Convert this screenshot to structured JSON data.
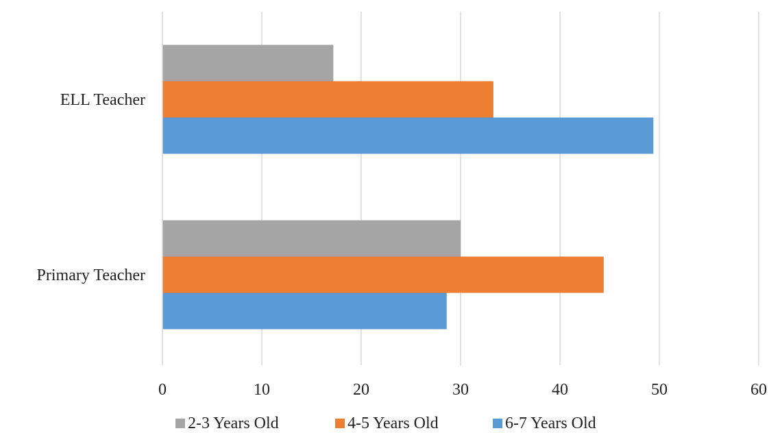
{
  "chart_data": {
    "type": "bar",
    "orientation": "horizontal",
    "title": "",
    "xlabel": "",
    "ylabel": "",
    "categories": [
      "ELL Teacher",
      "Primary Teacher"
    ],
    "series": [
      {
        "name": "2-3 Years Old",
        "values": [
          17.2,
          30.0
        ],
        "color": "#a5a5a5"
      },
      {
        "name": "4-5 Years Old",
        "values": [
          33.3,
          44.4
        ],
        "color": "#ed7d31"
      },
      {
        "name": "6-7 Years Old",
        "values": [
          49.4,
          28.6
        ],
        "color": "#5b9bd5"
      }
    ],
    "xlim": [
      0,
      60
    ],
    "x_ticks": [
      "0",
      "10",
      "20",
      "30",
      "40",
      "50",
      "60"
    ],
    "grid": "vertical",
    "legend_position": "bottom"
  }
}
